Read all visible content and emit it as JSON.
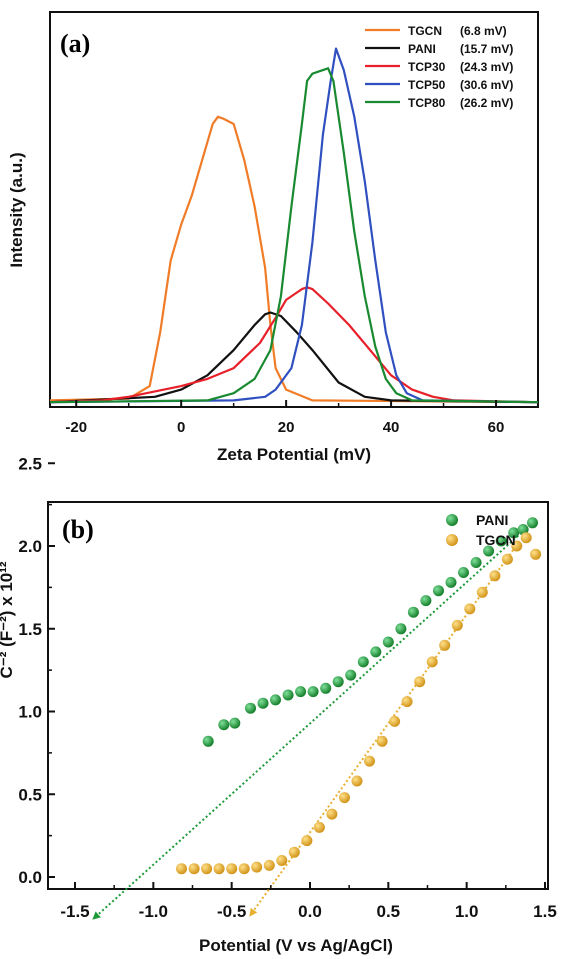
{
  "chart_data": [
    {
      "type": "line",
      "panel_label": "(a)",
      "xlabel": "Zeta Potential (mV)",
      "ylabel": "Intensity (a.u.)",
      "xlim": [
        -25,
        68
      ],
      "ylim": [
        0,
        1
      ],
      "xticks": [
        -20,
        0,
        20,
        40,
        60
      ],
      "legend_position": "top-right",
      "series": [
        {
          "name": "TGCN",
          "value_label": "(6.8 mV)",
          "color": "#f07c28",
          "points": [
            [
              -25,
              0.01
            ],
            [
              -10,
              0.015
            ],
            [
              -6,
              0.05
            ],
            [
              -4,
              0.2
            ],
            [
              -2,
              0.4
            ],
            [
              0,
              0.5
            ],
            [
              2,
              0.58
            ],
            [
              4,
              0.68
            ],
            [
              6,
              0.78
            ],
            [
              7,
              0.8
            ],
            [
              8,
              0.795
            ],
            [
              10,
              0.78
            ],
            [
              12,
              0.68
            ],
            [
              14,
              0.55
            ],
            [
              16,
              0.38
            ],
            [
              17,
              0.22
            ],
            [
              18,
              0.1
            ],
            [
              20,
              0.04
            ],
            [
              25,
              0.01
            ],
            [
              68,
              0.005
            ]
          ]
        },
        {
          "name": "PANI",
          "value_label": "(15.7 mV)",
          "color": "#111111",
          "points": [
            [
              -25,
              0.005
            ],
            [
              -5,
              0.02
            ],
            [
              0,
              0.04
            ],
            [
              5,
              0.08
            ],
            [
              10,
              0.15
            ],
            [
              14,
              0.22
            ],
            [
              16,
              0.25
            ],
            [
              17,
              0.255
            ],
            [
              19,
              0.245
            ],
            [
              22,
              0.2
            ],
            [
              25,
              0.15
            ],
            [
              30,
              0.06
            ],
            [
              35,
              0.02
            ],
            [
              40,
              0.01
            ],
            [
              68,
              0.005
            ]
          ]
        },
        {
          "name": "TCP30",
          "value_label": "(24.3 mV)",
          "color": "#e8202a",
          "points": [
            [
              -25,
              0.005
            ],
            [
              -15,
              0.01
            ],
            [
              -10,
              0.02
            ],
            [
              -5,
              0.035
            ],
            [
              0,
              0.05
            ],
            [
              5,
              0.07
            ],
            [
              10,
              0.1
            ],
            [
              15,
              0.17
            ],
            [
              18,
              0.24
            ],
            [
              20,
              0.29
            ],
            [
              23,
              0.32
            ],
            [
              24,
              0.325
            ],
            [
              25,
              0.32
            ],
            [
              28,
              0.28
            ],
            [
              32,
              0.22
            ],
            [
              36,
              0.15
            ],
            [
              40,
              0.08
            ],
            [
              44,
              0.04
            ],
            [
              48,
              0.02
            ],
            [
              52,
              0.01
            ],
            [
              68,
              0.005
            ]
          ]
        },
        {
          "name": "TCP50",
          "value_label": "(30.6 mV)",
          "color": "#3050c0",
          "points": [
            [
              -25,
              0.005
            ],
            [
              10,
              0.01
            ],
            [
              16,
              0.02
            ],
            [
              18,
              0.04
            ],
            [
              21,
              0.1
            ],
            [
              23,
              0.22
            ],
            [
              25,
              0.45
            ],
            [
              27,
              0.75
            ],
            [
              28.5,
              0.9
            ],
            [
              29.5,
              0.99
            ],
            [
              31,
              0.93
            ],
            [
              33,
              0.8
            ],
            [
              35,
              0.62
            ],
            [
              37,
              0.4
            ],
            [
              39,
              0.2
            ],
            [
              41,
              0.08
            ],
            [
              43,
              0.03
            ],
            [
              46,
              0.01
            ],
            [
              68,
              0.005
            ]
          ]
        },
        {
          "name": "TCP80",
          "value_label": "(26.2 mV)",
          "color": "#1a8a30",
          "points": [
            [
              -25,
              0.005
            ],
            [
              5,
              0.01
            ],
            [
              10,
              0.03
            ],
            [
              14,
              0.07
            ],
            [
              17,
              0.15
            ],
            [
              19,
              0.3
            ],
            [
              21,
              0.55
            ],
            [
              23,
              0.78
            ],
            [
              24,
              0.9
            ],
            [
              25,
              0.92
            ],
            [
              27,
              0.93
            ],
            [
              28,
              0.935
            ],
            [
              29,
              0.9
            ],
            [
              31,
              0.7
            ],
            [
              33,
              0.48
            ],
            [
              35,
              0.3
            ],
            [
              37,
              0.16
            ],
            [
              39,
              0.07
            ],
            [
              41,
              0.03
            ],
            [
              44,
              0.01
            ],
            [
              68,
              0.005
            ]
          ]
        }
      ]
    },
    {
      "type": "scatter",
      "panel_label": "(b)",
      "xlabel": "Potential (V vs Ag/AgCl)",
      "ylabel": "C⁻² (F⁻²) x 10¹²",
      "xlim": [
        -1.5,
        1.5
      ],
      "ylim": [
        -0.2,
        2.5
      ],
      "xticks": [
        -1.5,
        -1.0,
        -0.5,
        0.0,
        0.5,
        1.0,
        1.5
      ],
      "yticks": [
        0.0,
        0.5,
        1.0,
        1.5,
        2.0,
        2.5
      ],
      "legend_position": "top-right",
      "series": [
        {
          "name": "PANI",
          "color": "#1e9a3a",
          "x": [
            -0.65,
            -0.55,
            -0.48,
            -0.38,
            -0.3,
            -0.22,
            -0.14,
            -0.06,
            0.02,
            0.1,
            0.18,
            0.26,
            0.34,
            0.42,
            0.5,
            0.58,
            0.66,
            0.74,
            0.82,
            0.9,
            0.98,
            1.06,
            1.14,
            1.22,
            1.3,
            1.36,
            1.42
          ],
          "y": [
            0.82,
            0.92,
            0.93,
            1.02,
            1.05,
            1.07,
            1.1,
            1.12,
            1.12,
            1.14,
            1.18,
            1.22,
            1.3,
            1.36,
            1.42,
            1.5,
            1.6,
            1.67,
            1.73,
            1.78,
            1.84,
            1.9,
            1.97,
            2.03,
            2.08,
            2.1,
            2.14
          ]
        },
        {
          "name": "TGCN",
          "color": "#e8b030",
          "x": [
            -0.82,
            -0.74,
            -0.66,
            -0.58,
            -0.5,
            -0.42,
            -0.34,
            -0.26,
            -0.18,
            -0.1,
            -0.02,
            0.06,
            0.14,
            0.22,
            0.3,
            0.38,
            0.46,
            0.54,
            0.62,
            0.7,
            0.78,
            0.86,
            0.94,
            1.02,
            1.1,
            1.18,
            1.26,
            1.32,
            1.38,
            1.44
          ],
          "y": [
            0.05,
            0.05,
            0.05,
            0.05,
            0.05,
            0.05,
            0.06,
            0.07,
            0.1,
            0.15,
            0.22,
            0.3,
            0.38,
            0.48,
            0.58,
            0.7,
            0.82,
            0.94,
            1.06,
            1.18,
            1.3,
            1.4,
            1.52,
            1.62,
            1.72,
            1.82,
            1.92,
            2.0,
            2.05,
            1.95
          ]
        }
      ],
      "fit_lines": [
        {
          "color": "#1e9a3a",
          "from": [
            1.35,
            2.08
          ],
          "to": [
            -1.38,
            -0.25
          ]
        },
        {
          "color": "#e8b030",
          "from": [
            1.33,
            2.02
          ],
          "to": [
            -0.38,
            -0.23
          ]
        }
      ]
    }
  ]
}
